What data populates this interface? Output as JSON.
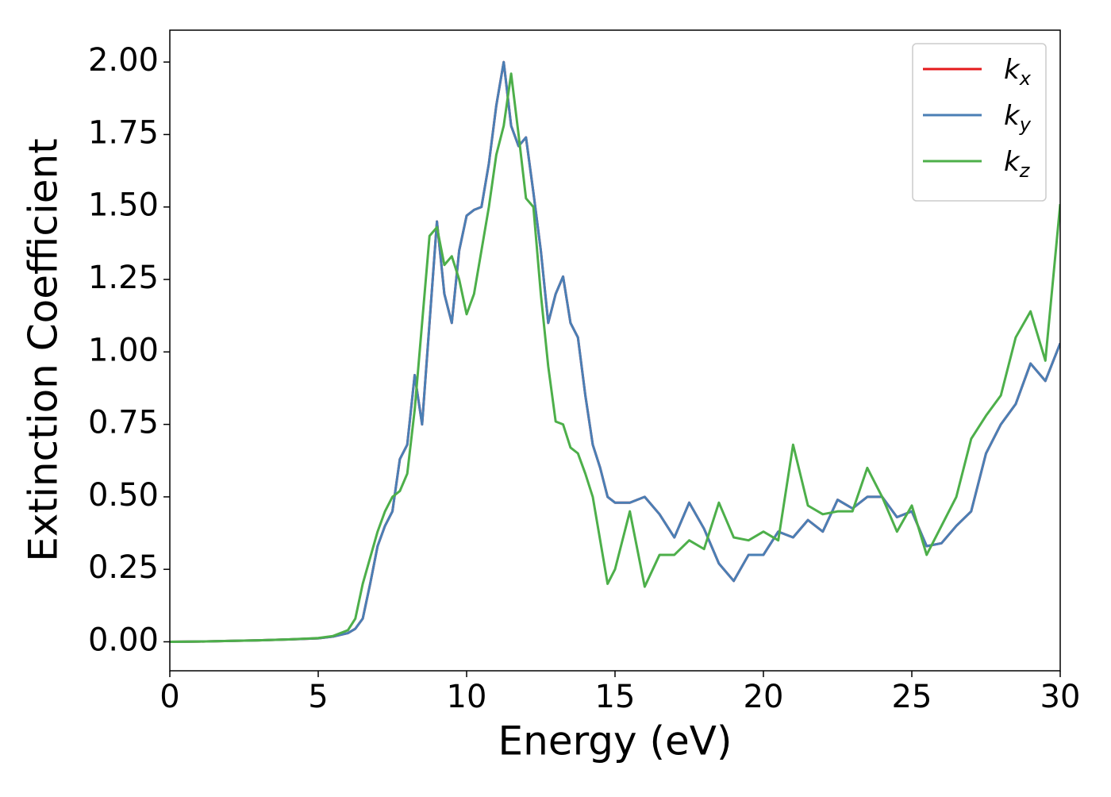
{
  "chart_data": {
    "type": "line",
    "xlabel": "Energy (eV)",
    "ylabel": "Extinction Coefficient",
    "x": [
      0,
      1,
      2,
      3,
      4,
      5,
      5.5,
      6,
      6.25,
      6.5,
      6.75,
      7,
      7.25,
      7.5,
      7.75,
      8,
      8.25,
      8.5,
      8.75,
      9,
      9.25,
      9.5,
      9.75,
      10,
      10.25,
      10.5,
      10.75,
      11,
      11.25,
      11.5,
      11.75,
      12,
      12.25,
      12.5,
      12.75,
      13,
      13.25,
      13.5,
      13.75,
      14,
      14.25,
      14.5,
      14.75,
      15,
      15.5,
      16,
      16.5,
      17,
      17.5,
      18,
      18.5,
      19,
      19.5,
      20,
      20.5,
      21,
      21.5,
      22,
      22.5,
      23,
      23.5,
      24,
      24.5,
      25,
      25.5,
      26,
      26.5,
      27,
      27.5,
      28,
      28.5,
      29,
      29.5,
      30
    ],
    "series": [
      {
        "name": "kx",
        "color": "#e41a1c",
        "values": [
          0,
          0.001,
          0.003,
          0.005,
          0.008,
          0.012,
          0.018,
          0.03,
          0.045,
          0.08,
          0.2,
          0.33,
          0.4,
          0.45,
          0.63,
          0.68,
          0.92,
          0.75,
          1.1,
          1.45,
          1.2,
          1.1,
          1.35,
          1.47,
          1.49,
          1.5,
          1.65,
          1.85,
          2.0,
          1.78,
          1.71,
          1.74,
          1.55,
          1.35,
          1.1,
          1.2,
          1.26,
          1.1,
          1.05,
          0.85,
          0.68,
          0.6,
          0.5,
          0.48,
          0.48,
          0.5,
          0.44,
          0.36,
          0.48,
          0.39,
          0.27,
          0.21,
          0.3,
          0.3,
          0.38,
          0.36,
          0.42,
          0.38,
          0.49,
          0.46,
          0.5,
          0.5,
          0.43,
          0.45,
          0.33,
          0.34,
          0.4,
          0.45,
          0.65,
          0.75,
          0.82,
          0.96,
          0.9,
          1.03
        ]
      },
      {
        "name": "ky",
        "color": "#4a7fb5",
        "values": [
          0,
          0.001,
          0.003,
          0.005,
          0.008,
          0.012,
          0.018,
          0.03,
          0.045,
          0.08,
          0.2,
          0.33,
          0.4,
          0.45,
          0.63,
          0.68,
          0.92,
          0.75,
          1.1,
          1.45,
          1.2,
          1.1,
          1.35,
          1.47,
          1.49,
          1.5,
          1.65,
          1.85,
          2.0,
          1.78,
          1.71,
          1.74,
          1.55,
          1.35,
          1.1,
          1.2,
          1.26,
          1.1,
          1.05,
          0.85,
          0.68,
          0.6,
          0.5,
          0.48,
          0.48,
          0.5,
          0.44,
          0.36,
          0.48,
          0.39,
          0.27,
          0.21,
          0.3,
          0.3,
          0.38,
          0.36,
          0.42,
          0.38,
          0.49,
          0.46,
          0.5,
          0.5,
          0.43,
          0.45,
          0.33,
          0.34,
          0.4,
          0.45,
          0.65,
          0.75,
          0.82,
          0.96,
          0.9,
          1.03
        ]
      },
      {
        "name": "kz",
        "color": "#4daf4a",
        "values": [
          0,
          0.001,
          0.003,
          0.005,
          0.008,
          0.013,
          0.02,
          0.04,
          0.08,
          0.2,
          0.29,
          0.38,
          0.45,
          0.5,
          0.52,
          0.58,
          0.8,
          1.1,
          1.4,
          1.43,
          1.3,
          1.33,
          1.25,
          1.13,
          1.2,
          1.35,
          1.5,
          1.68,
          1.78,
          1.96,
          1.75,
          1.53,
          1.5,
          1.2,
          0.95,
          0.76,
          0.75,
          0.67,
          0.65,
          0.58,
          0.5,
          0.35,
          0.2,
          0.25,
          0.45,
          0.19,
          0.3,
          0.3,
          0.35,
          0.32,
          0.48,
          0.36,
          0.35,
          0.38,
          0.35,
          0.68,
          0.47,
          0.44,
          0.45,
          0.45,
          0.6,
          0.5,
          0.38,
          0.47,
          0.3,
          0.4,
          0.5,
          0.7,
          0.78,
          0.85,
          1.05,
          1.14,
          0.97,
          1.51
        ]
      }
    ],
    "xlim": [
      0,
      30
    ],
    "ylim": [
      -0.1,
      2.11
    ],
    "xticks": [
      0,
      5,
      10,
      15,
      20,
      25,
      30
    ],
    "yticks": [
      {
        "value": 0,
        "label": "0.00"
      },
      {
        "value": 0.25,
        "label": "0.25"
      },
      {
        "value": 0.5,
        "label": "0.50"
      },
      {
        "value": 0.75,
        "label": "0.75"
      },
      {
        "value": 1,
        "label": "1.00"
      },
      {
        "value": 1.25,
        "label": "1.25"
      },
      {
        "value": 1.5,
        "label": "1.50"
      },
      {
        "value": 1.75,
        "label": "1.75"
      },
      {
        "value": 2,
        "label": "2.00"
      }
    ],
    "grid": false,
    "legend": "upper right"
  }
}
